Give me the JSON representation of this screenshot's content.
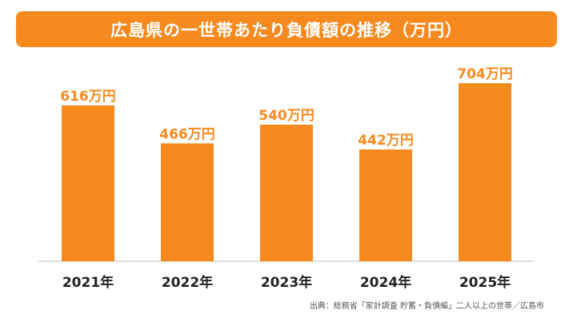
{
  "chart_data": {
    "type": "bar",
    "title": "広島県の一世帯あたり負債額の推移（万円）",
    "categories": [
      "2021年",
      "2022年",
      "2023年",
      "2024年",
      "2025年"
    ],
    "values": [
      616,
      466,
      540,
      442,
      704
    ],
    "data_labels": [
      "616万円",
      "466万円",
      "540万円",
      "442万円",
      "704万円"
    ],
    "unit": "万円",
    "ylim": [
      0,
      780
    ],
    "grid": false,
    "legend": "none"
  },
  "colors": {
    "bar": "#f78a1e",
    "label": "#f78a1e",
    "category": "#222222",
    "axis": "#bfbfbf",
    "title_bg": "#f78a1e",
    "title_text": "#ffffff"
  },
  "source": "出典：総務省「家計調査 貯蓄・負債編」二人以上の世帯／広島市"
}
